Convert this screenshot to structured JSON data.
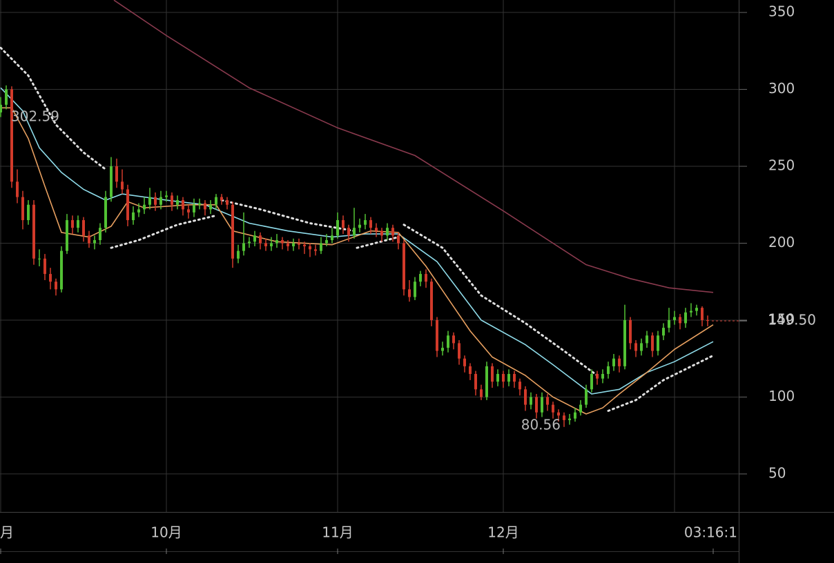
{
  "chart_data": {
    "type": "candlestick",
    "xlim": [
      -0.125,
      133.625
    ],
    "ylim": [
      25.3,
      358.1
    ],
    "yticks": [
      50,
      100,
      150,
      200,
      250,
      300,
      350
    ],
    "xticks": [
      {
        "value": 0,
        "label": "月"
      },
      {
        "value": 30,
        "label": "10月"
      },
      {
        "value": 61,
        "label": "11月"
      },
      {
        "value": 91,
        "label": "12月"
      },
      {
        "value": 129,
        "label": "03:16:1"
      }
    ],
    "xgrid": [
      0,
      30,
      61,
      91,
      122
    ],
    "grid": true,
    "up_color": "#52c234",
    "down_color": "#d23a2a",
    "last_price": {
      "value": 149.5,
      "label": "149.50",
      "color": "#a8322a"
    },
    "annotations": [
      302.59,
      80.56
    ],
    "x": [
      0,
      1,
      2,
      3,
      4,
      5,
      6,
      7,
      8,
      9,
      10,
      11,
      12,
      13,
      14,
      15,
      16,
      17,
      18,
      19,
      20,
      21,
      22,
      23,
      24,
      25,
      26,
      27,
      28,
      29,
      30,
      31,
      32,
      33,
      34,
      35,
      36,
      37,
      38,
      39,
      40,
      41,
      42,
      43,
      44,
      45,
      46,
      47,
      48,
      49,
      50,
      51,
      52,
      53,
      54,
      55,
      56,
      57,
      58,
      59,
      60,
      61,
      62,
      63,
      64,
      65,
      66,
      67,
      68,
      69,
      70,
      71,
      72,
      73,
      74,
      75,
      76,
      77,
      78,
      79,
      80,
      81,
      82,
      83,
      84,
      85,
      86,
      87,
      88,
      89,
      90,
      91,
      92,
      93,
      94,
      95,
      96,
      97,
      98,
      99,
      100,
      101,
      102,
      103,
      104,
      105,
      106,
      107,
      108,
      109,
      110,
      111,
      112,
      113,
      114,
      115,
      116,
      117,
      118,
      119,
      120,
      121,
      122,
      123,
      124,
      125,
      126,
      127,
      128
    ],
    "candles": [
      [
        285,
        295,
        282,
        290
      ],
      [
        290,
        302.59,
        287,
        300
      ],
      [
        300,
        302,
        236,
        240
      ],
      [
        240,
        248,
        226,
        230
      ],
      [
        230,
        234,
        209,
        215
      ],
      [
        215,
        228,
        212,
        225
      ],
      [
        225,
        228,
        186,
        190
      ],
      [
        190,
        196,
        185,
        190
      ],
      [
        190,
        193,
        176,
        180
      ],
      [
        180,
        184,
        170,
        175
      ],
      [
        175,
        177,
        166,
        170
      ],
      [
        170,
        198,
        168,
        195
      ],
      [
        195,
        219,
        193,
        215
      ],
      [
        215,
        218,
        206,
        210
      ],
      [
        210,
        218,
        207,
        215
      ],
      [
        215,
        217,
        201,
        205
      ],
      [
        205,
        208,
        197,
        200
      ],
      [
        200,
        205,
        196,
        202
      ],
      [
        202,
        213,
        199,
        210
      ],
      [
        210,
        234,
        207,
        230
      ],
      [
        230,
        256,
        227,
        250
      ],
      [
        250,
        255,
        236,
        240
      ],
      [
        240,
        248,
        232,
        235
      ],
      [
        235,
        238,
        211,
        215
      ],
      [
        215,
        224,
        212,
        220
      ],
      [
        220,
        226,
        217,
        222
      ],
      [
        222,
        230,
        219,
        225
      ],
      [
        225,
        236,
        222,
        230
      ],
      [
        230,
        233,
        221,
        225
      ],
      [
        225,
        234,
        222,
        230
      ],
      [
        230,
        234,
        227,
        231
      ],
      [
        231,
        233,
        221,
        225
      ],
      [
        225,
        231,
        222,
        228
      ],
      [
        228,
        230,
        218,
        222
      ],
      [
        222,
        225,
        216,
        220
      ],
      [
        220,
        229,
        217,
        225
      ],
      [
        225,
        229,
        222,
        226
      ],
      [
        226,
        228,
        218,
        222
      ],
      [
        222,
        228,
        219,
        225
      ],
      [
        225,
        232,
        222,
        230
      ],
      [
        230,
        232,
        225,
        228
      ],
      [
        228,
        230,
        222,
        225
      ],
      [
        225,
        227,
        184,
        190
      ],
      [
        190,
        199,
        187,
        195
      ],
      [
        195,
        220,
        192,
        200
      ],
      [
        200,
        204,
        197,
        201
      ],
      [
        201,
        208,
        198,
        205
      ],
      [
        205,
        207,
        196,
        200
      ],
      [
        200,
        203,
        195,
        198
      ],
      [
        198,
        204,
        195,
        200
      ],
      [
        200,
        206,
        197,
        202
      ],
      [
        202,
        204,
        196,
        200
      ],
      [
        200,
        202,
        195,
        198
      ],
      [
        198,
        203,
        195,
        200
      ],
      [
        200,
        203,
        196,
        199
      ],
      [
        199,
        201,
        193,
        198
      ],
      [
        198,
        200,
        191,
        196
      ],
      [
        196,
        199,
        192,
        195
      ],
      [
        195,
        204,
        193,
        200
      ],
      [
        200,
        206,
        198,
        202
      ],
      [
        202,
        210,
        200,
        205
      ],
      [
        205,
        220,
        203,
        215
      ],
      [
        215,
        218,
        206,
        210
      ],
      [
        210,
        212,
        201,
        205
      ],
      [
        205,
        223,
        203,
        210
      ],
      [
        210,
        216,
        207,
        212
      ],
      [
        212,
        219,
        209,
        215
      ],
      [
        215,
        217,
        206,
        210
      ],
      [
        210,
        213,
        204,
        208
      ],
      [
        208,
        210,
        201,
        205
      ],
      [
        205,
        213,
        202,
        210
      ],
      [
        210,
        212,
        201,
        205
      ],
      [
        205,
        207,
        196,
        200
      ],
      [
        200,
        202,
        166,
        170
      ],
      [
        170,
        176,
        162,
        165
      ],
      [
        165,
        178,
        163,
        175
      ],
      [
        175,
        182,
        172,
        180
      ],
      [
        180,
        183,
        171,
        175
      ],
      [
        175,
        177,
        146,
        150
      ],
      [
        150,
        152,
        126,
        130
      ],
      [
        130,
        136,
        127,
        132
      ],
      [
        132,
        143,
        129,
        140
      ],
      [
        140,
        142,
        131,
        135
      ],
      [
        135,
        137,
        121,
        125
      ],
      [
        125,
        127,
        116,
        120
      ],
      [
        120,
        122,
        111,
        115
      ],
      [
        115,
        117,
        101,
        105
      ],
      [
        105,
        108,
        98,
        100
      ],
      [
        100,
        123,
        98,
        120
      ],
      [
        120,
        122,
        106,
        110
      ],
      [
        110,
        118,
        107,
        115
      ],
      [
        115,
        117,
        106,
        110
      ],
      [
        110,
        118,
        107,
        115
      ],
      [
        115,
        117,
        106,
        110
      ],
      [
        110,
        112,
        101,
        105
      ],
      [
        105,
        107,
        91,
        95
      ],
      [
        95,
        103,
        92,
        100
      ],
      [
        100,
        102,
        86,
        90
      ],
      [
        90,
        103,
        87,
        100
      ],
      [
        100,
        102,
        91,
        95
      ],
      [
        95,
        97,
        86,
        90
      ],
      [
        90,
        92,
        84,
        88
      ],
      [
        88,
        90,
        80.56,
        85
      ],
      [
        85,
        89,
        82,
        86
      ],
      [
        86,
        93,
        84,
        90
      ],
      [
        90,
        98,
        88,
        95
      ],
      [
        95,
        108,
        93,
        105
      ],
      [
        105,
        118,
        103,
        115
      ],
      [
        115,
        117,
        108,
        112
      ],
      [
        112,
        118,
        109,
        115
      ],
      [
        115,
        123,
        112,
        120
      ],
      [
        120,
        128,
        117,
        125
      ],
      [
        125,
        127,
        116,
        120
      ],
      [
        120,
        160,
        118,
        150
      ],
      [
        150,
        152,
        131,
        135
      ],
      [
        135,
        137,
        126,
        130
      ],
      [
        130,
        138,
        127,
        135
      ],
      [
        135,
        143,
        132,
        140
      ],
      [
        140,
        142,
        126,
        130
      ],
      [
        130,
        143,
        127,
        140
      ],
      [
        140,
        148,
        137,
        145
      ],
      [
        145,
        158,
        142,
        150
      ],
      [
        150,
        156,
        147,
        152
      ],
      [
        152,
        154,
        144,
        148
      ],
      [
        148,
        158,
        145,
        155
      ],
      [
        155,
        161,
        152,
        156
      ],
      [
        156,
        160,
        153,
        158
      ],
      [
        158,
        159,
        146,
        150
      ],
      [
        150,
        153,
        146,
        149.5
      ]
    ],
    "series": [
      {
        "color": "#8a3a4e",
        "style": "solid",
        "x": [
          20.5,
          30,
          45,
          61,
          75,
          91,
          106,
          114,
          121,
          129
        ],
        "values": [
          358,
          335,
          301,
          275,
          257,
          221,
          186,
          177,
          171,
          168
        ]
      },
      {
        "color": "#e0e0e0",
        "style": "dotted",
        "x": [
          0,
          5,
          10,
          15,
          19,
          19.5,
          20,
          25,
          32,
          39,
          39.5,
          40,
          47,
          56,
          64,
          64.2,
          64.5,
          72,
          72.5,
          73,
          80,
          87,
          95,
          102,
          108,
          108.5,
          110,
          115,
          120,
          129
        ],
        "values": [
          327,
          309,
          277,
          259,
          248,
          null,
          197,
          202,
          212,
          218,
          null,
          228,
          222,
          213,
          208,
          null,
          197,
          204,
          null,
          212,
          197,
          166,
          148,
          130,
          114,
          null,
          91,
          98,
          111,
          127
        ]
      },
      {
        "color": "#8fdcea",
        "style": "solid",
        "x": [
          0,
          4,
          7,
          11,
          15,
          19,
          22,
          30,
          37,
          45,
          52,
          60,
          66,
          72,
          79,
          87,
          95,
          100,
          107,
          112,
          117,
          122,
          129
        ],
        "values": [
          301,
          286,
          262,
          246,
          235,
          228,
          232,
          228,
          225,
          213,
          208,
          204,
          206,
          206,
          188,
          150,
          134,
          121,
          102,
          105,
          116,
          123,
          136
        ]
      },
      {
        "color": "#e8a060",
        "style": "solid",
        "x": [
          0,
          2,
          5,
          8,
          11,
          16,
          20,
          23,
          26,
          34,
          39,
          42,
          50,
          60,
          67,
          72,
          77,
          85,
          89,
          95,
          100,
          106,
          109,
          112,
          117,
          122,
          129
        ],
        "values": [
          288,
          288,
          268,
          237,
          207,
          204,
          211,
          227,
          223,
          225,
          225,
          208,
          201,
          199,
          208,
          207,
          185,
          143,
          126,
          114,
          100,
          89,
          93,
          102,
          116,
          131,
          147
        ]
      }
    ]
  }
}
